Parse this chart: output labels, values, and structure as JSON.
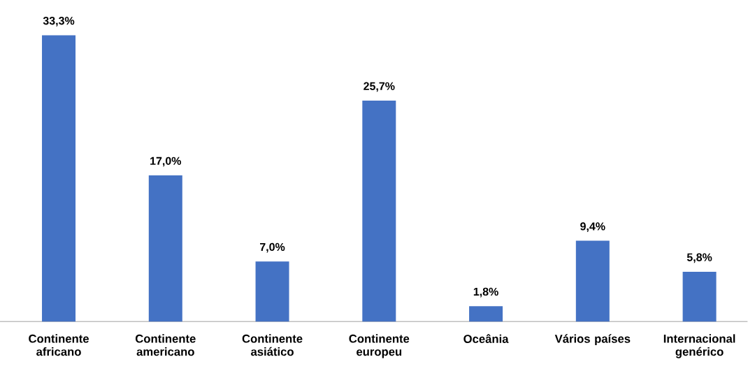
{
  "chart_data": {
    "type": "bar",
    "categories": [
      "Continente africano",
      "Continente americano",
      "Continente asiático",
      "Continente europeu",
      "Oceânia",
      "Vários países",
      "Internacional genérico"
    ],
    "values": [
      33.3,
      17.0,
      7.0,
      25.7,
      1.8,
      9.4,
      5.8
    ],
    "value_labels": [
      "33,3%",
      "17,0%",
      "7,0%",
      "25,7%",
      "1,8%",
      "9,4%",
      "5,8%"
    ],
    "color": "#4472c4"
  }
}
